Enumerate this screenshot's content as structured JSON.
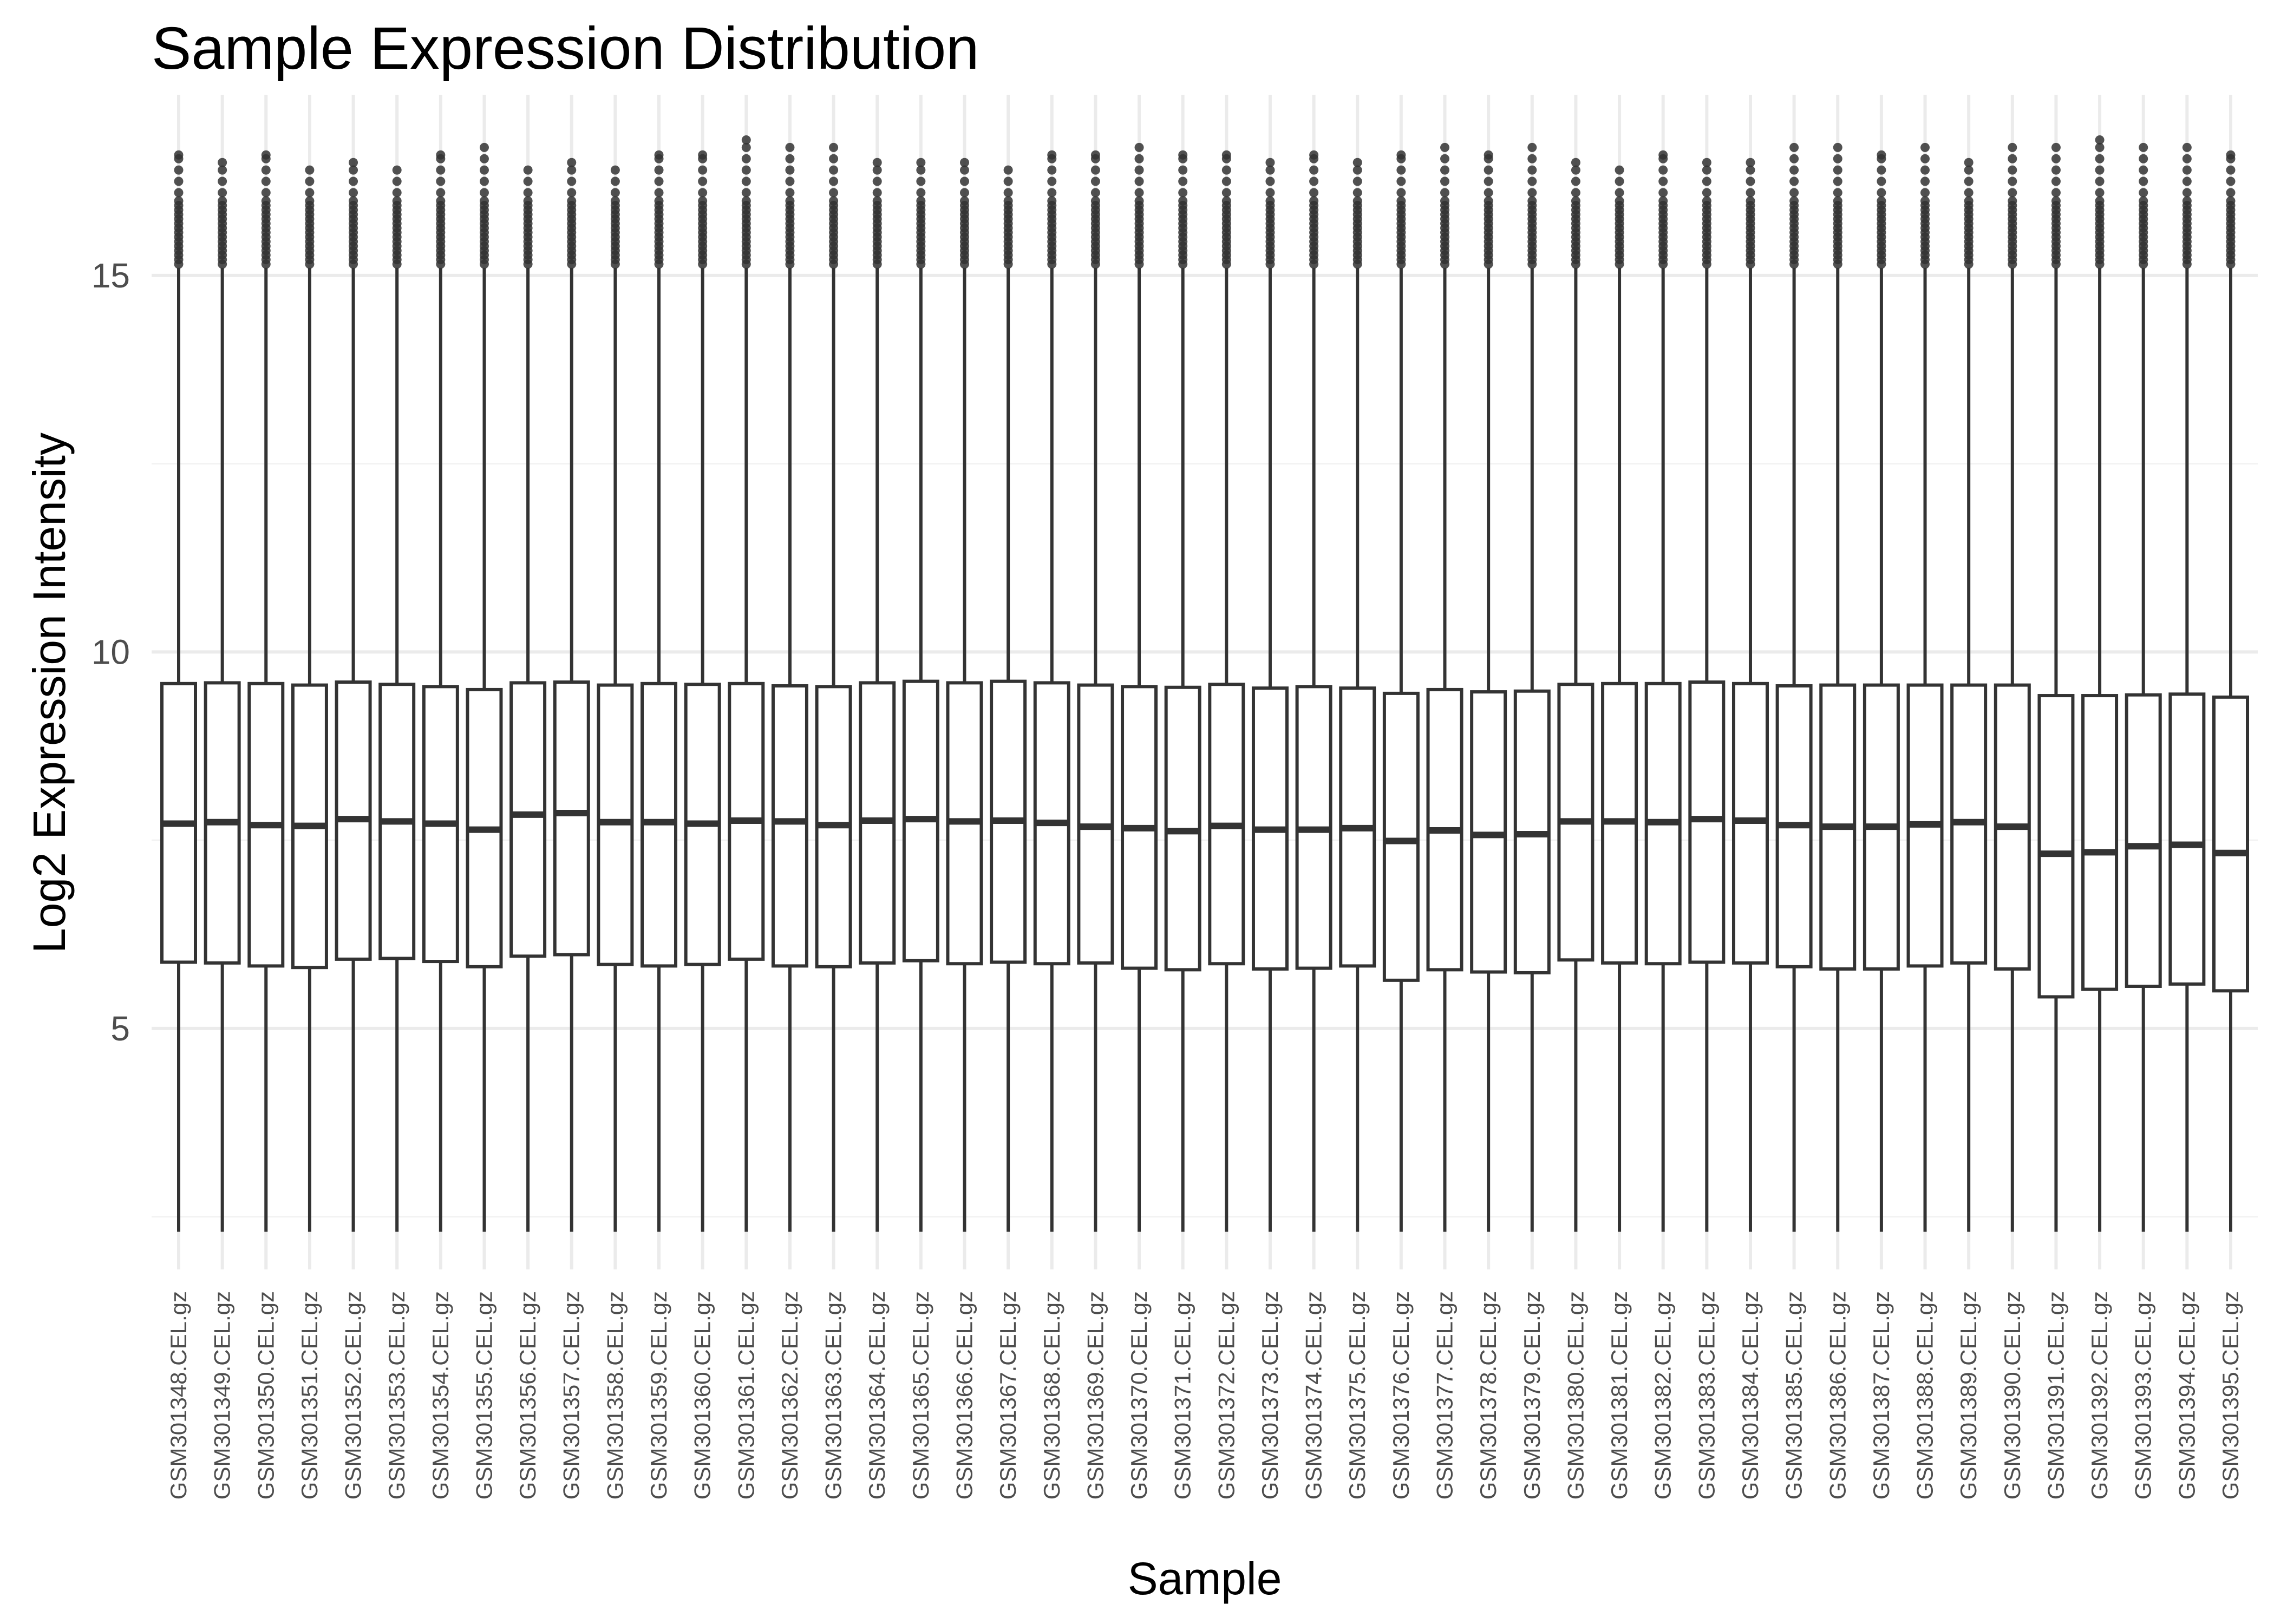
{
  "chart_data": {
    "type": "boxplot",
    "title": "Sample Expression Distribution",
    "xlabel": "Sample",
    "ylabel": "Log2 Expression Intensity",
    "ylim": [
      1.8,
      17.4
    ],
    "yticks": [
      5,
      10,
      15
    ],
    "grid": true,
    "legend": "none",
    "colors": {
      "box_stroke": "#333333",
      "box_fill": "#ffffff",
      "grid": "#ebebeb",
      "outlier": "#333333"
    },
    "categories": [
      "GSM301348.CEL.gz",
      "GSM301349.CEL.gz",
      "GSM301350.CEL.gz",
      "GSM301351.CEL.gz",
      "GSM301352.CEL.gz",
      "GSM301353.CEL.gz",
      "GSM301354.CEL.gz",
      "GSM301355.CEL.gz",
      "GSM301356.CEL.gz",
      "GSM301357.CEL.gz",
      "GSM301358.CEL.gz",
      "GSM301359.CEL.gz",
      "GSM301360.CEL.gz",
      "GSM301361.CEL.gz",
      "GSM301362.CEL.gz",
      "GSM301363.CEL.gz",
      "GSM301364.CEL.gz",
      "GSM301365.CEL.gz",
      "GSM301366.CEL.gz",
      "GSM301367.CEL.gz",
      "GSM301368.CEL.gz",
      "GSM301369.CEL.gz",
      "GSM301370.CEL.gz",
      "GSM301371.CEL.gz",
      "GSM301372.CEL.gz",
      "GSM301373.CEL.gz",
      "GSM301374.CEL.gz",
      "GSM301375.CEL.gz",
      "GSM301376.CEL.gz",
      "GSM301377.CEL.gz",
      "GSM301378.CEL.gz",
      "GSM301379.CEL.gz",
      "GSM301380.CEL.gz",
      "GSM301381.CEL.gz",
      "GSM301382.CEL.gz",
      "GSM301383.CEL.gz",
      "GSM301384.CEL.gz",
      "GSM301385.CEL.gz",
      "GSM301386.CEL.gz",
      "GSM301387.CEL.gz",
      "GSM301388.CEL.gz",
      "GSM301389.CEL.gz",
      "GSM301390.CEL.gz",
      "GSM301391.CEL.gz",
      "GSM301392.CEL.gz",
      "GSM301393.CEL.gz",
      "GSM301394.CEL.gz",
      "GSM301395.CEL.gz"
    ],
    "q1": [
      5.88,
      5.87,
      5.83,
      5.81,
      5.92,
      5.93,
      5.89,
      5.82,
      5.96,
      5.98,
      5.85,
      5.83,
      5.85,
      5.92,
      5.83,
      5.82,
      5.87,
      5.9,
      5.86,
      5.88,
      5.86,
      5.87,
      5.8,
      5.78,
      5.86,
      5.79,
      5.8,
      5.83,
      5.64,
      5.78,
      5.75,
      5.74,
      5.91,
      5.87,
      5.86,
      5.88,
      5.87,
      5.82,
      5.79,
      5.79,
      5.83,
      5.87,
      5.79,
      5.42,
      5.52,
      5.56,
      5.59,
      5.5
    ],
    "median": [
      7.72,
      7.74,
      7.7,
      7.69,
      7.78,
      7.75,
      7.72,
      7.64,
      7.84,
      7.86,
      7.74,
      7.74,
      7.72,
      7.76,
      7.75,
      7.7,
      7.76,
      7.78,
      7.75,
      7.76,
      7.73,
      7.68,
      7.66,
      7.62,
      7.69,
      7.64,
      7.64,
      7.66,
      7.49,
      7.63,
      7.57,
      7.58,
      7.75,
      7.75,
      7.74,
      7.78,
      7.76,
      7.7,
      7.68,
      7.68,
      7.71,
      7.74,
      7.68,
      7.32,
      7.34,
      7.42,
      7.44,
      7.33
    ],
    "q3": [
      9.58,
      9.59,
      9.58,
      9.56,
      9.6,
      9.57,
      9.54,
      9.5,
      9.59,
      9.6,
      9.56,
      9.58,
      9.57,
      9.58,
      9.55,
      9.54,
      9.59,
      9.61,
      9.59,
      9.61,
      9.59,
      9.56,
      9.54,
      9.53,
      9.57,
      9.52,
      9.54,
      9.52,
      9.45,
      9.5,
      9.47,
      9.48,
      9.57,
      9.58,
      9.58,
      9.6,
      9.58,
      9.55,
      9.56,
      9.56,
      9.56,
      9.56,
      9.56,
      9.42,
      9.42,
      9.43,
      9.44,
      9.4
    ],
    "whisker_low": [
      2.3,
      2.3,
      2.3,
      2.3,
      2.3,
      2.3,
      2.3,
      2.3,
      2.3,
      2.3,
      2.3,
      2.3,
      2.3,
      2.3,
      2.3,
      2.3,
      2.3,
      2.3,
      2.3,
      2.3,
      2.3,
      2.3,
      2.3,
      2.3,
      2.3,
      2.3,
      2.3,
      2.3,
      2.3,
      2.3,
      2.3,
      2.3,
      2.3,
      2.3,
      2.3,
      2.3,
      2.3,
      2.3,
      2.3,
      2.3,
      2.3,
      2.3,
      2.3,
      2.3,
      2.3,
      2.3,
      2.3,
      2.3
    ],
    "whisker_high": [
      15.1,
      15.1,
      15.1,
      15.1,
      15.1,
      15.1,
      15.1,
      15.1,
      15.1,
      15.1,
      15.1,
      15.1,
      15.1,
      15.1,
      15.1,
      15.1,
      15.1,
      15.1,
      15.1,
      15.1,
      15.1,
      15.1,
      15.1,
      15.1,
      15.1,
      15.1,
      15.1,
      15.1,
      15.1,
      15.1,
      15.1,
      15.1,
      15.1,
      15.1,
      15.1,
      15.1,
      15.1,
      15.1,
      15.1,
      15.1,
      15.1,
      15.1,
      15.1,
      15.1,
      15.1,
      15.1,
      15.1,
      15.1
    ],
    "outlier_max": [
      16.6,
      16.5,
      16.6,
      16.4,
      16.5,
      16.4,
      16.6,
      16.7,
      16.4,
      16.5,
      16.4,
      16.6,
      16.6,
      16.8,
      16.7,
      16.7,
      16.5,
      16.5,
      16.5,
      16.4,
      16.6,
      16.6,
      16.7,
      16.6,
      16.6,
      16.5,
      16.6,
      16.5,
      16.6,
      16.7,
      16.6,
      16.7,
      16.5,
      16.4,
      16.6,
      16.5,
      16.5,
      16.7,
      16.7,
      16.6,
      16.7,
      16.5,
      16.7,
      16.7,
      16.8,
      16.7,
      16.7,
      16.6
    ]
  }
}
